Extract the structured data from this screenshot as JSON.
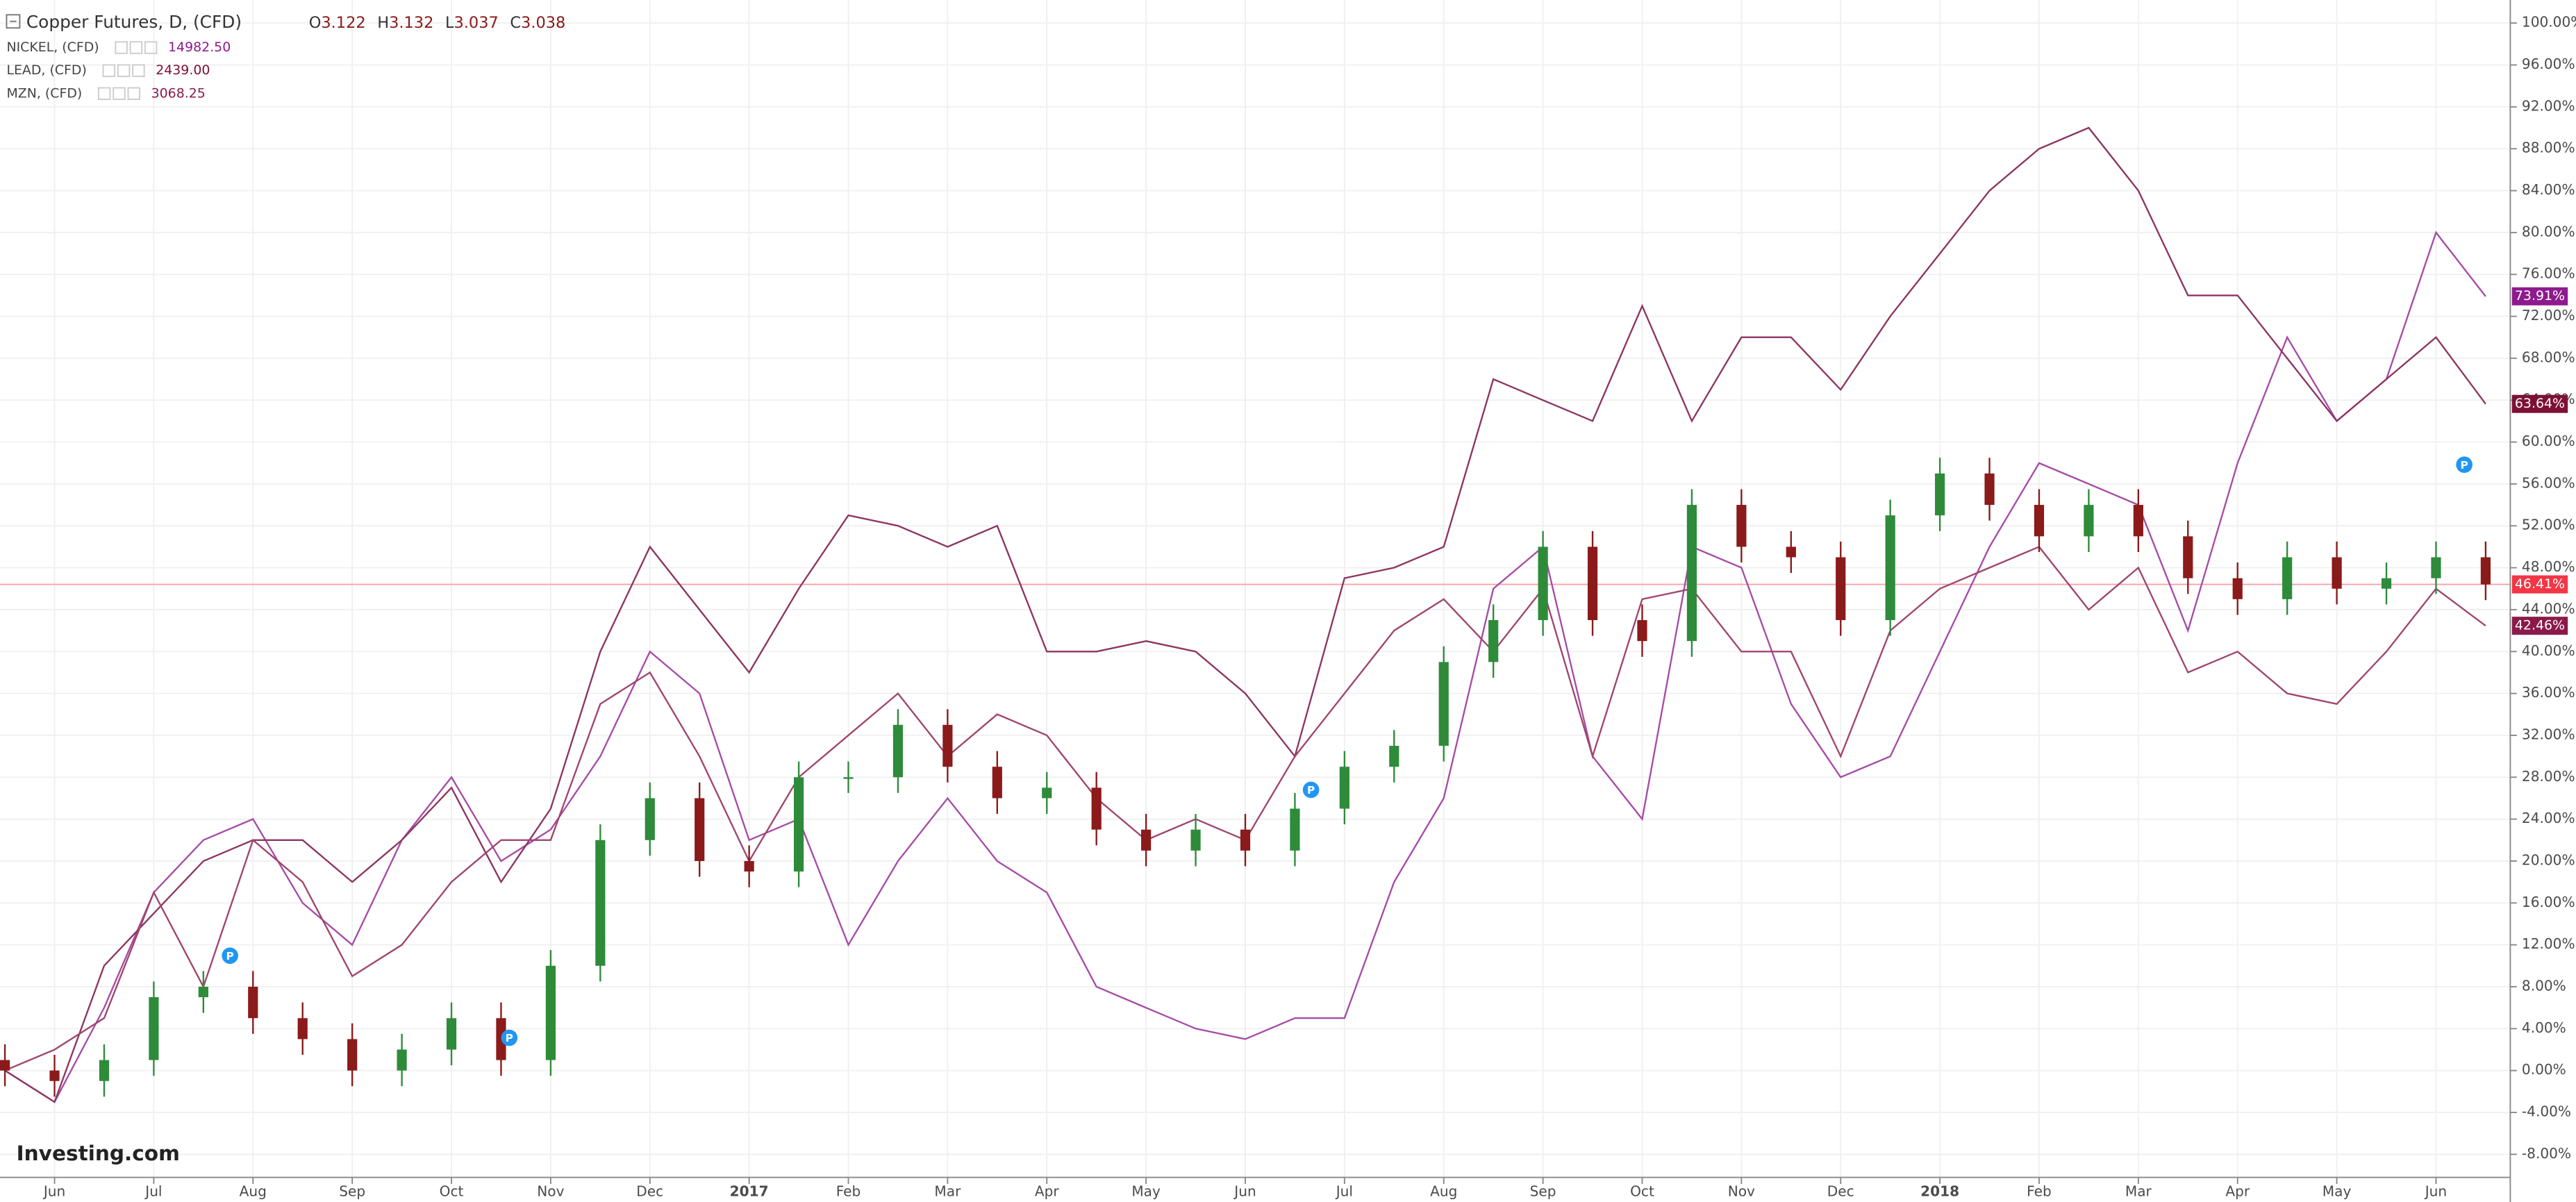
{
  "chart_data": {
    "type": "candlestick",
    "title": "Copper Futures, D, (CFD)",
    "readout": [
      {
        "label": "O",
        "value": 3.122
      },
      {
        "label": "H",
        "value": 3.132
      },
      {
        "label": "L",
        "value": 3.037
      },
      {
        "label": "C",
        "value": 3.038
      }
    ],
    "watermark": "Investing.com",
    "events": [
      "P",
      "P",
      "P",
      "P"
    ],
    "ylim": [
      -10.2,
      102.2
    ],
    "yticks": [
      {
        "value": -8,
        "label": "-8.00%"
      },
      {
        "value": -4,
        "label": "-4.00%"
      },
      {
        "value": 0,
        "label": "0.00%"
      },
      {
        "value": 4,
        "label": "4.00%"
      },
      {
        "value": 8,
        "label": "8.00%"
      },
      {
        "value": 12,
        "label": "12.00%"
      },
      {
        "value": 16,
        "label": "16.00%"
      },
      {
        "value": 20,
        "label": "20.00%"
      },
      {
        "value": 24,
        "label": "24.00%"
      },
      {
        "value": 28,
        "label": "28.00%"
      },
      {
        "value": 32,
        "label": "32.00%"
      },
      {
        "value": 36,
        "label": "36.00%"
      },
      {
        "value": 40,
        "label": "40.00%"
      },
      {
        "value": 44,
        "label": "44.00%"
      },
      {
        "value": 48,
        "label": "48.00%"
      },
      {
        "value": 52,
        "label": "52.00%"
      },
      {
        "value": 56,
        "label": "56.00%"
      },
      {
        "value": 60,
        "label": "60.00%"
      },
      {
        "value": 64,
        "label": "64.00%"
      },
      {
        "value": 68,
        "label": "68.00%"
      },
      {
        "value": 72,
        "label": "72.00%"
      },
      {
        "value": 76,
        "label": "76.00%"
      },
      {
        "value": 80,
        "label": "80.00%"
      },
      {
        "value": 84,
        "label": "84.00%"
      },
      {
        "value": 88,
        "label": "88.00%"
      },
      {
        "value": 92,
        "label": "92.00%"
      },
      {
        "value": 96,
        "label": "96.00%"
      },
      {
        "value": 100,
        "label": "100.00%"
      }
    ],
    "grid": true,
    "categories": [
      null,
      "Jun",
      null,
      "Jul",
      null,
      "Aug",
      null,
      "Sep",
      null,
      "Oct",
      null,
      "Nov",
      null,
      "Dec",
      null,
      "2017",
      null,
      "Feb",
      null,
      "Mar",
      null,
      "Apr",
      null,
      "May",
      null,
      "Jun",
      null,
      "Jul",
      null,
      "Aug",
      null,
      "Sep",
      null,
      "Oct",
      null,
      "Nov",
      null,
      "Dec",
      null,
      "2018",
      null,
      "Feb",
      null,
      "Mar",
      null,
      "Apr",
      null,
      "May",
      null,
      "Jun",
      null
    ],
    "candles": {
      "up_color": "#2e8b3a",
      "down_color": "#8b1a1a",
      "tag_color": "#f23645",
      "open": [
        1,
        0,
        -1,
        1,
        7,
        8,
        5,
        3,
        0,
        2,
        5,
        1,
        10,
        22,
        26,
        20,
        19,
        28,
        28,
        33,
        29,
        26,
        27,
        23,
        21,
        23,
        21,
        25,
        29,
        31,
        39,
        43,
        50,
        43,
        41,
        54,
        50,
        49,
        43,
        53,
        57,
        54,
        51,
        54,
        51,
        47,
        45,
        49,
        46,
        47,
        49
      ],
      "high": [
        2.5,
        1.5,
        2.5,
        8.5,
        9.5,
        9.5,
        6.5,
        4.5,
        3.5,
        6.5,
        6.5,
        11.5,
        23.5,
        27.5,
        27.5,
        21.5,
        29.5,
        29.5,
        34.5,
        34.5,
        30.5,
        28.5,
        28.5,
        24.5,
        24.5,
        24.5,
        26.5,
        30.5,
        32.5,
        40.5,
        44.5,
        51.5,
        51.5,
        44.5,
        55.5,
        55.5,
        51.5,
        50.5,
        54.5,
        58.5,
        58.5,
        55.5,
        55.5,
        55.5,
        52.5,
        48.5,
        50.5,
        50.5,
        48.5,
        50.5,
        50.5
      ],
      "low": [
        -1.5,
        -2.5,
        -2.5,
        -0.5,
        5.5,
        3.5,
        1.5,
        -1.5,
        -1.5,
        0.5,
        -0.5,
        -0.5,
        8.5,
        20.5,
        18.5,
        17.5,
        17.5,
        26.5,
        26.5,
        27.5,
        24.5,
        24.5,
        21.5,
        19.5,
        19.5,
        19.5,
        19.5,
        23.5,
        27.5,
        29.5,
        37.5,
        41.5,
        41.5,
        39.5,
        39.5,
        48.5,
        47.5,
        41.5,
        41.5,
        51.5,
        52.5,
        49.5,
        49.5,
        49.5,
        45.5,
        43.5,
        43.5,
        44.5,
        44.5,
        45.5,
        44.91
      ],
      "close": [
        0,
        -1,
        1,
        7,
        8,
        5,
        3,
        0,
        2,
        5,
        1,
        10,
        22,
        26,
        20,
        19,
        28,
        28,
        33,
        29,
        26,
        27,
        23,
        21,
        23,
        21,
        25,
        29,
        31,
        39,
        43,
        50,
        43,
        41,
        54,
        50,
        49,
        43,
        53,
        57,
        54,
        51,
        54,
        51,
        47,
        45,
        49,
        46,
        47,
        49,
        46.41
      ],
      "value_labels": [
        null,
        null,
        null,
        null,
        null,
        null,
        null,
        null,
        null,
        null,
        null,
        null,
        null,
        null,
        null,
        null,
        null,
        null,
        null,
        null,
        null,
        null,
        null,
        null,
        null,
        null,
        null,
        null,
        null,
        null,
        null,
        null,
        null,
        null,
        null,
        null,
        null,
        null,
        null,
        null,
        null,
        null,
        null,
        null,
        null,
        null,
        null,
        null,
        null,
        null,
        "46.41%"
      ]
    },
    "series": [
      {
        "name": "NICKEL, (CFD)",
        "last_price": "14982.50",
        "type": "line",
        "color": "#a64ca6",
        "tag_color": "#8e1a8e",
        "values": [
          0,
          -3,
          6,
          17,
          22,
          24,
          16,
          12,
          22,
          28,
          20,
          23,
          30,
          40,
          36,
          22,
          24,
          12,
          20,
          26,
          20,
          17,
          8,
          6,
          4,
          3,
          5,
          5,
          18,
          26,
          46,
          50,
          30,
          24,
          50,
          48,
          35,
          28,
          30,
          40,
          50,
          58,
          56,
          54,
          42,
          58,
          70,
          62,
          66,
          80,
          73.91
        ],
        "value_labels": [
          null,
          null,
          null,
          null,
          null,
          null,
          null,
          null,
          null,
          null,
          null,
          null,
          null,
          null,
          null,
          null,
          null,
          null,
          null,
          null,
          null,
          null,
          null,
          null,
          null,
          null,
          null,
          null,
          null,
          null,
          null,
          null,
          null,
          null,
          null,
          null,
          null,
          null,
          null,
          null,
          null,
          null,
          null,
          null,
          null,
          null,
          null,
          null,
          null,
          null,
          "73.91%"
        ]
      },
      {
        "name": "LEAD, (CFD)",
        "last_price": "2439.00",
        "type": "line",
        "color": "#8d3560",
        "tag_color": "#7d1034",
        "values": [
          0,
          -3,
          10,
          15,
          20,
          22,
          22,
          18,
          22,
          27,
          18,
          25,
          40,
          50,
          44,
          38,
          46,
          53,
          52,
          50,
          52,
          40,
          40,
          41,
          40,
          36,
          30,
          47,
          48,
          50,
          66,
          64,
          62,
          73,
          62,
          70,
          70,
          65,
          72,
          78,
          84,
          88,
          90,
          84,
          74,
          74,
          68,
          62,
          66,
          70,
          63.64
        ],
        "value_labels": [
          null,
          null,
          null,
          null,
          null,
          null,
          null,
          null,
          null,
          null,
          null,
          null,
          null,
          null,
          null,
          null,
          null,
          null,
          null,
          null,
          null,
          null,
          null,
          null,
          null,
          null,
          null,
          null,
          null,
          null,
          null,
          null,
          null,
          null,
          null,
          null,
          null,
          null,
          null,
          null,
          null,
          null,
          null,
          null,
          null,
          null,
          null,
          null,
          null,
          null,
          "63.64%"
        ]
      },
      {
        "name": "MZN, (CFD)",
        "last_price": "3068.25",
        "type": "line",
        "color": "#a0456e",
        "tag_color": "#8b1a4a",
        "values": [
          0,
          2,
          5,
          17,
          8,
          22,
          18,
          9,
          12,
          18,
          22,
          22,
          35,
          38,
          30,
          20,
          28,
          32,
          36,
          30,
          34,
          32,
          26,
          22,
          24,
          22,
          30,
          36,
          42,
          45,
          40,
          46,
          30,
          45,
          46,
          40,
          40,
          30,
          42,
          46,
          48,
          50,
          44,
          48,
          38,
          40,
          36,
          35,
          40,
          46,
          42.46
        ],
        "value_labels": [
          null,
          null,
          null,
          null,
          null,
          null,
          null,
          null,
          null,
          null,
          null,
          null,
          null,
          null,
          null,
          null,
          null,
          null,
          null,
          null,
          null,
          null,
          null,
          null,
          null,
          null,
          null,
          null,
          null,
          null,
          null,
          null,
          null,
          null,
          null,
          null,
          null,
          null,
          null,
          null,
          null,
          null,
          null,
          null,
          null,
          null,
          null,
          null,
          null,
          null,
          "42.46%"
        ]
      }
    ]
  }
}
